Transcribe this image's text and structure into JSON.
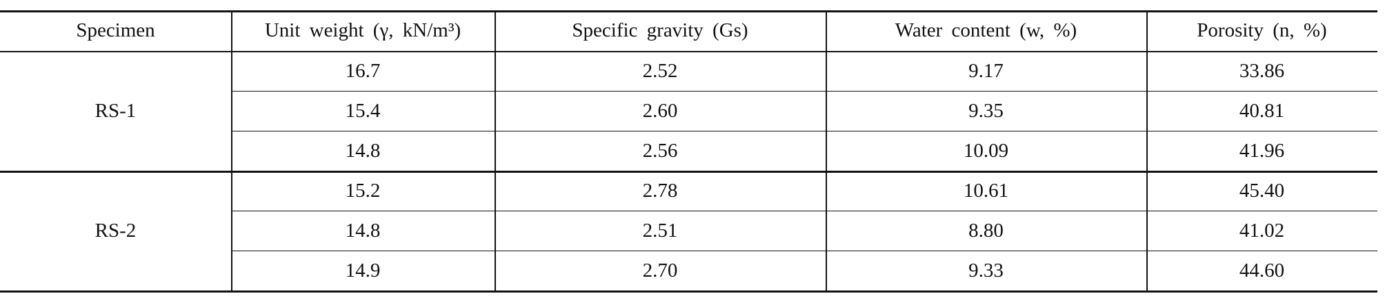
{
  "table": {
    "header": [
      "Specimen",
      "Unit weight (γ, kN/m³)",
      "Specific gravity (Gs)",
      "Water content (w, %)",
      "Porosity (n, %)"
    ],
    "groups": [
      {
        "specimen": "RS-1",
        "rows": [
          [
            "16.7",
            "2.52",
            "9.17",
            "33.86"
          ],
          [
            "15.4",
            "2.60",
            "9.35",
            "40.81"
          ],
          [
            "14.8",
            "2.56",
            "10.09",
            "41.96"
          ]
        ]
      },
      {
        "specimen": "RS-2",
        "rows": [
          [
            "15.2",
            "2.78",
            "10.61",
            "45.40"
          ],
          [
            "14.8",
            "2.51",
            "8.80",
            "41.02"
          ],
          [
            "14.9",
            "2.70",
            "9.33",
            "44.60"
          ]
        ]
      }
    ]
  }
}
